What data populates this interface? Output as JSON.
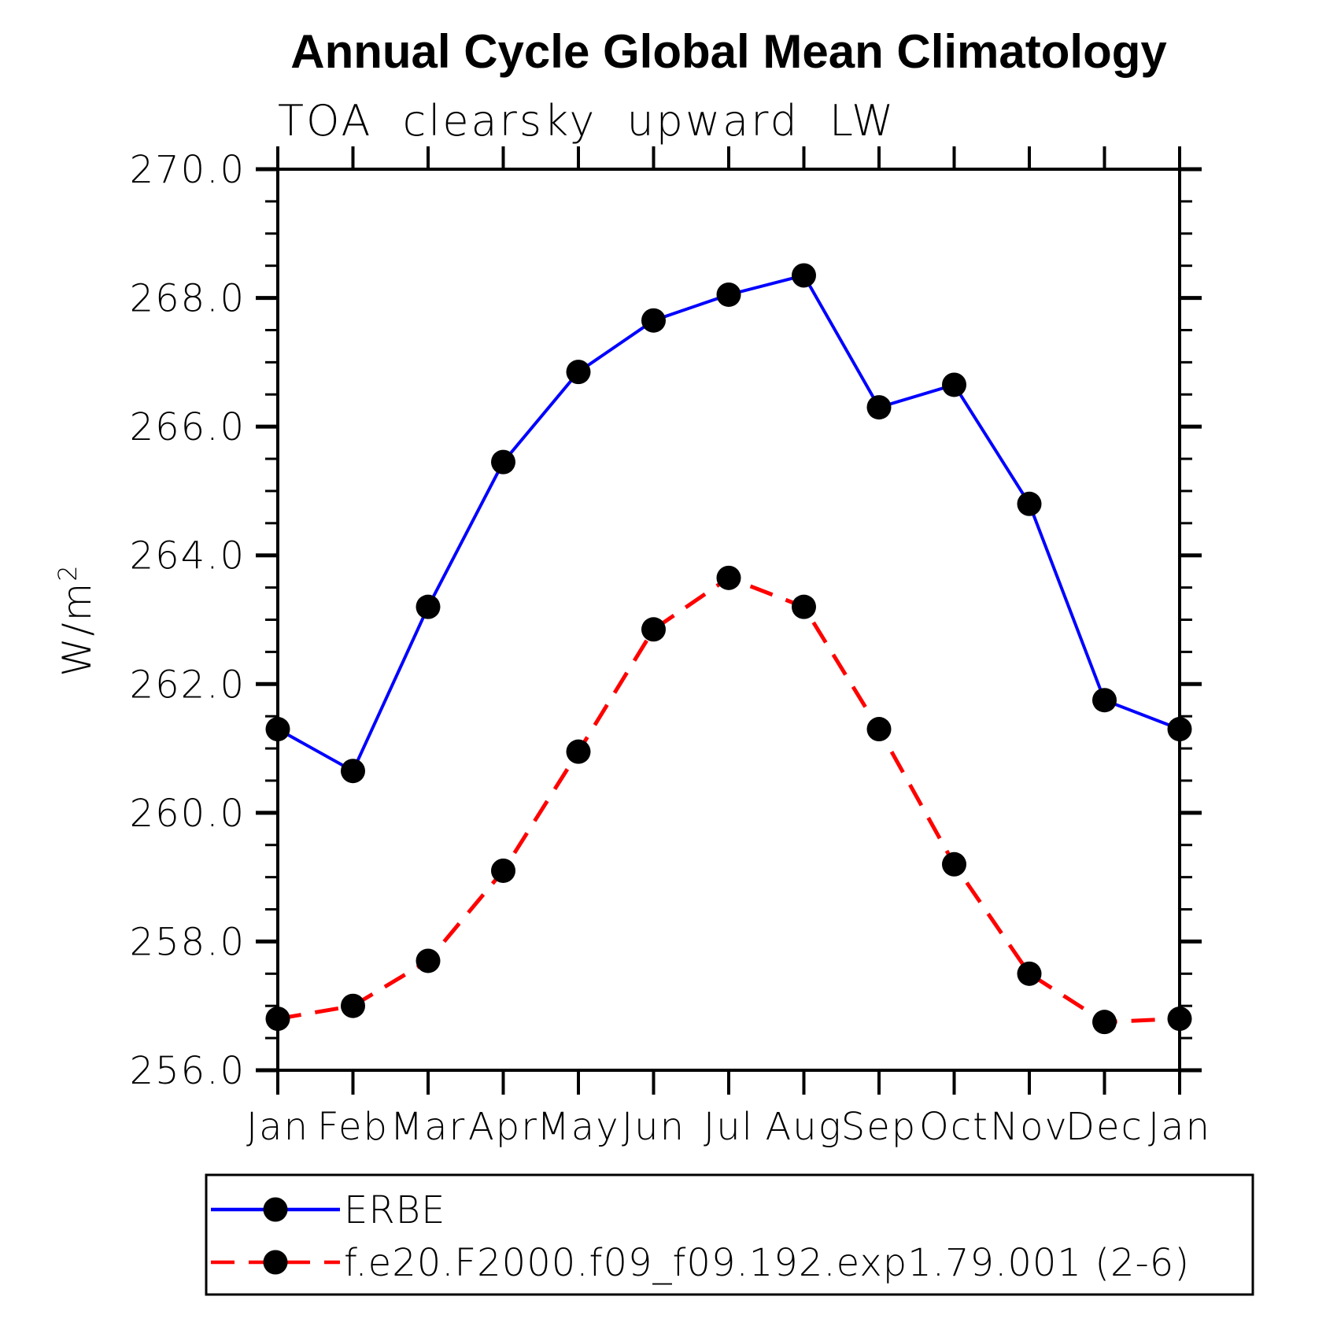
{
  "chart_data": {
    "type": "line",
    "title": "Annual Cycle Global Mean Climatology",
    "subtitle": "TOA clearsky upward LW",
    "ylabel": "W/m²",
    "ylabel_base": "W/m",
    "ylabel_exp": "2",
    "categories": [
      "Jan",
      "Feb",
      "Mar",
      "Apr",
      "May",
      "Jun",
      "Jul",
      "Aug",
      "Sep",
      "Oct",
      "Nov",
      "Dec",
      "Jan"
    ],
    "series": [
      {
        "name": "ERBE",
        "color": "#0000ff",
        "line_style": "solid",
        "marker": "circle",
        "values": [
          261.3,
          260.65,
          263.2,
          265.45,
          266.85,
          267.65,
          268.05,
          268.35,
          266.3,
          266.65,
          264.8,
          261.75,
          261.3
        ]
      },
      {
        "name": "f.e20.F2000.f09_f09.192.exp1.79.001 (2-6)",
        "color": "#ff0000",
        "line_style": "dashed",
        "marker": "circle",
        "values": [
          256.8,
          257.0,
          257.7,
          259.1,
          260.95,
          262.85,
          263.65,
          263.2,
          261.3,
          259.2,
          257.5,
          256.75,
          256.8
        ]
      }
    ],
    "ylim": [
      256.0,
      270.0
    ],
    "ytick_step": 2.0,
    "yminor_step": 0.5,
    "ytick_labels": [
      "256.0",
      "258.0",
      "260.0",
      "262.0",
      "264.0",
      "266.0",
      "268.0",
      "270.0"
    ],
    "marker_color": "#000000",
    "axis_color": "#000000",
    "grid": false,
    "legend_position": "bottom-left"
  }
}
